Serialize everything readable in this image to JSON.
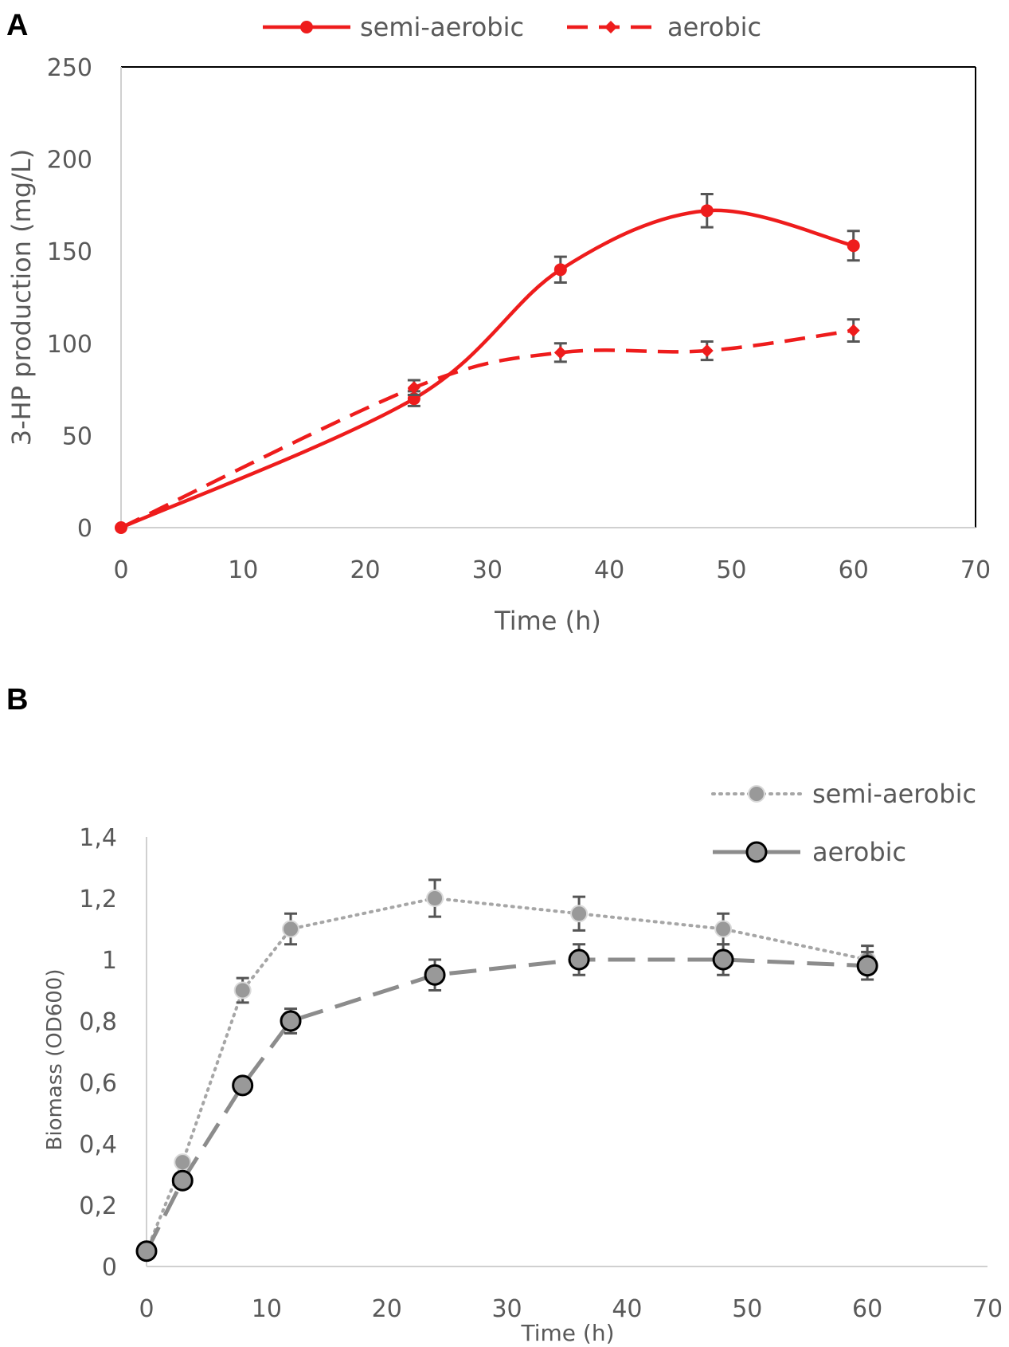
{
  "panels": {
    "a": {
      "label": "A"
    },
    "b": {
      "label": "B"
    }
  },
  "colors": {
    "red": "#ee1c1c",
    "tick_text": "#595959",
    "errorbar": "#555555",
    "gray_dotted": "#a6a6a6",
    "gray_dotted_marker": "#999999",
    "gray_dashed": "#8c8c8c",
    "gray_dashed_marker": "#999999"
  },
  "chart_data": [
    {
      "id": "A",
      "type": "line",
      "title": "",
      "xlabel": "Time (h)",
      "ylabel": "3-HP production (mg/L)",
      "xlim": [
        0,
        70
      ],
      "ylim": [
        0,
        250
      ],
      "xticks": [
        "0",
        "10",
        "20",
        "30",
        "40",
        "50",
        "60",
        "70"
      ],
      "yticks": [
        "0",
        "50",
        "100",
        "150",
        "200",
        "250"
      ],
      "legend_position": "top",
      "series": [
        {
          "name": "semi-aerobic",
          "style": "solid-smooth",
          "x": [
            0,
            24,
            36,
            48,
            60
          ],
          "y": [
            0,
            70,
            140,
            172,
            153
          ],
          "err": [
            0,
            4,
            7,
            9,
            8
          ]
        },
        {
          "name": "aerobic",
          "style": "dashed-smooth",
          "x": [
            0,
            24,
            36,
            48,
            60
          ],
          "y": [
            0,
            76,
            95,
            96,
            107
          ],
          "err": [
            0,
            4,
            5,
            5,
            6
          ]
        }
      ]
    },
    {
      "id": "B",
      "type": "line",
      "title": "",
      "xlabel": "Time (h)",
      "ylabel": "Biomass (OD600)",
      "xlim": [
        0,
        70
      ],
      "ylim": [
        0,
        1.4
      ],
      "xticks": [
        "0",
        "10",
        "20",
        "30",
        "40",
        "50",
        "60",
        "70"
      ],
      "yticks": [
        "0",
        "0,2",
        "0,4",
        "0,6",
        "0,8",
        "1",
        "1,2",
        "1,4"
      ],
      "legend_position": "top-right",
      "series": [
        {
          "name": "semi-aerobic",
          "style": "dotted",
          "x": [
            0,
            3,
            8,
            12,
            24,
            36,
            48,
            60
          ],
          "y": [
            0.05,
            0.34,
            0.9,
            1.1,
            1.2,
            1.15,
            1.1,
            1.0
          ],
          "err": [
            0,
            0,
            0.04,
            0.05,
            0.06,
            0.055,
            0.05,
            0.045
          ]
        },
        {
          "name": "aerobic",
          "style": "dashed",
          "x": [
            0,
            3,
            8,
            12,
            24,
            36,
            48,
            60
          ],
          "y": [
            0.05,
            0.28,
            0.59,
            0.8,
            0.95,
            1.0,
            1.0,
            0.98
          ],
          "err": [
            0,
            0,
            0.02,
            0.04,
            0.05,
            0.05,
            0.05,
            0.045
          ]
        }
      ]
    }
  ]
}
